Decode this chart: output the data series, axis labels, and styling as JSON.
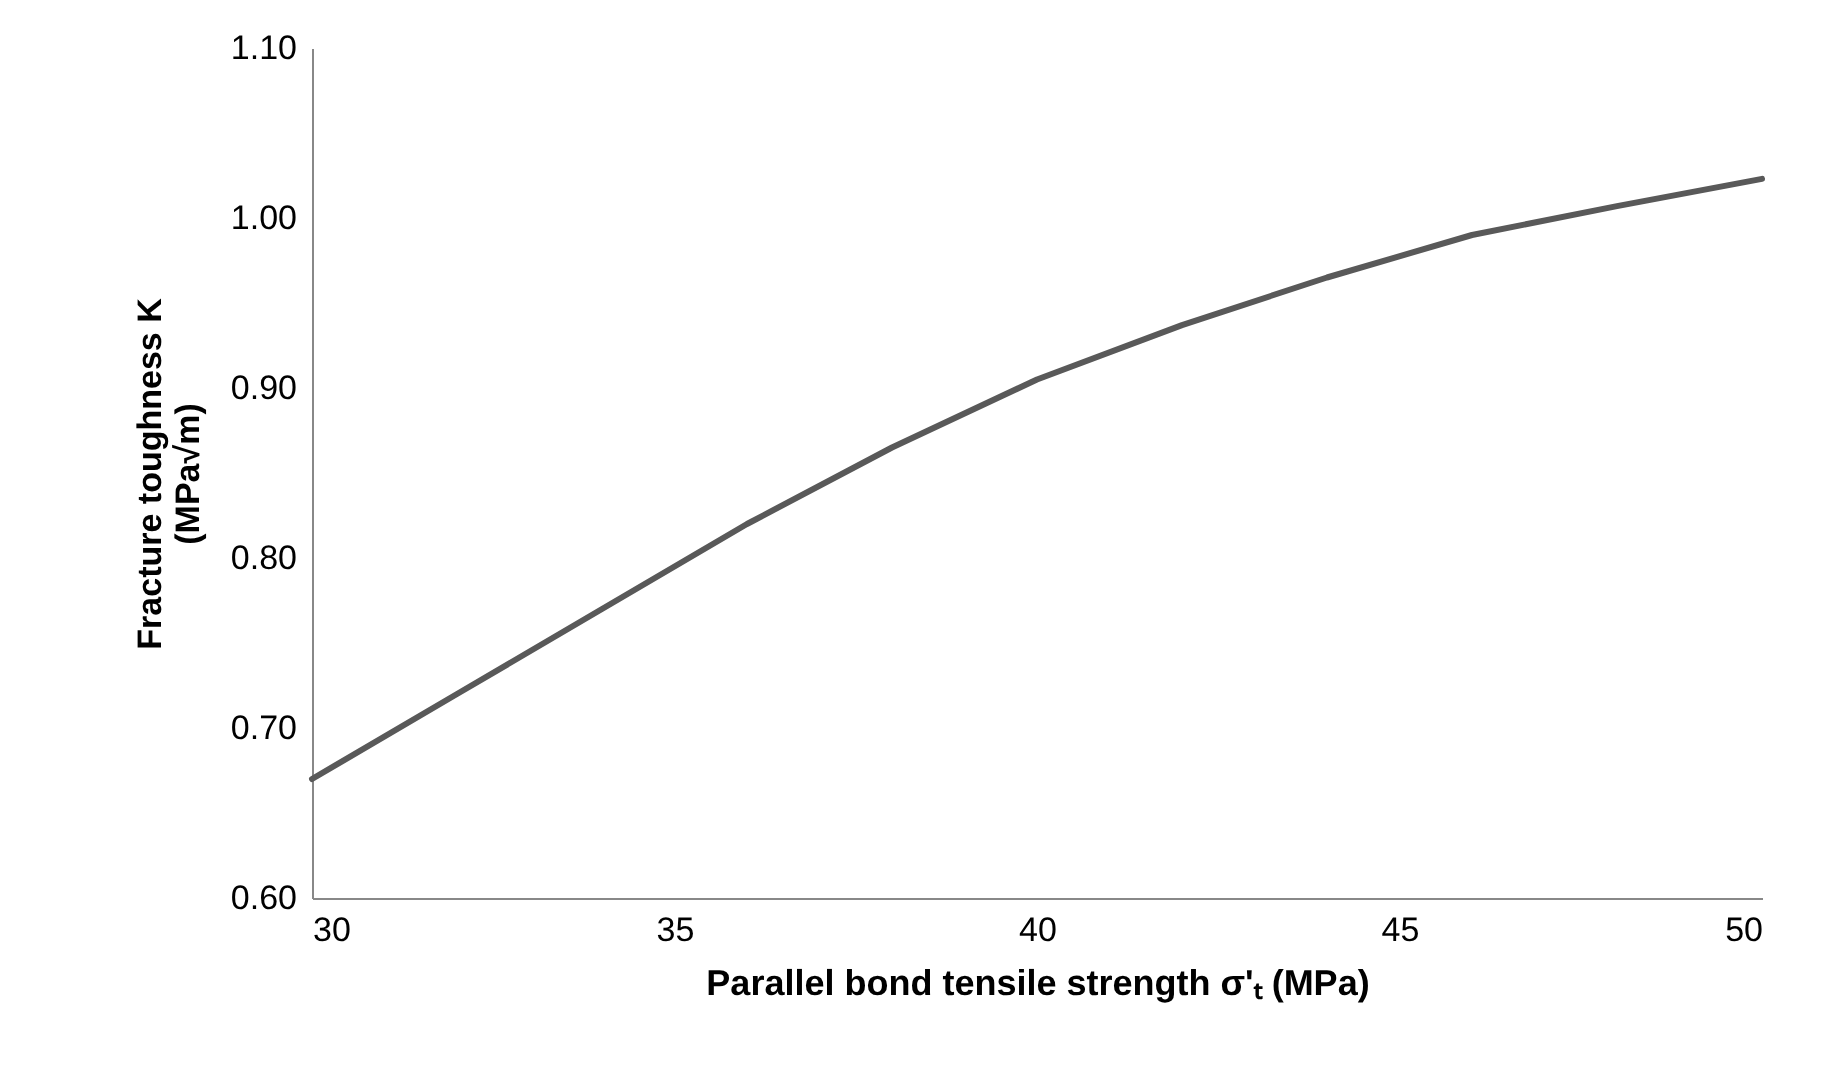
{
  "chart_data": {
    "type": "line",
    "xlabel": "Parallel bond tensile strength σ'ₜ (MPa)",
    "ylabel": "Fracture toughness K\n(MPa√m)",
    "x": [
      30,
      32,
      34,
      36,
      38,
      40,
      42,
      44,
      46,
      48,
      50
    ],
    "series": [
      {
        "color": "#595959",
        "values": [
          0.67,
          0.72,
          0.77,
          0.82,
          0.865,
          0.905,
          0.937,
          0.965,
          0.99,
          1.007,
          1.023
        ]
      }
    ],
    "xlim": [
      30,
      50
    ],
    "xticks": [
      30,
      35,
      40,
      45,
      50
    ],
    "ylim": [
      0.6,
      1.1
    ],
    "yticks": [
      {
        "value": 0.6,
        "label": "0.60"
      },
      {
        "value": 0.7,
        "label": "0.70"
      },
      {
        "value": 0.8,
        "label": "0.80"
      },
      {
        "value": 0.9,
        "label": "0.90"
      },
      {
        "value": 1.0,
        "label": "1.00"
      },
      {
        "value": 1.1,
        "label": "1.10"
      }
    ],
    "grid": false,
    "marker": "none",
    "line_style": "solid"
  }
}
